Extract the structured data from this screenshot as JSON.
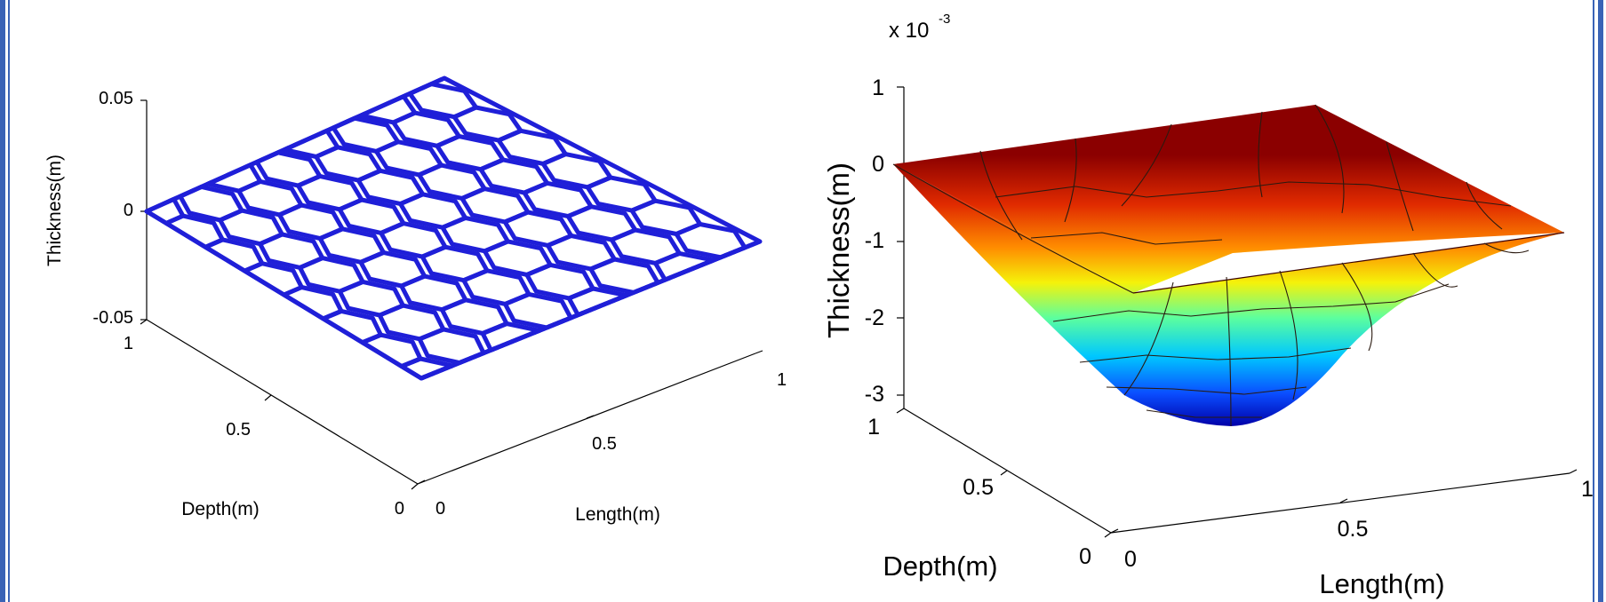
{
  "chart_data": [
    {
      "type": "surface",
      "style": "wireframe-mesh",
      "mesh": "hexagonal",
      "color": "#1f1fd8",
      "xlabel": "Length(m)",
      "ylabel": "Depth(m)",
      "zlabel": "Thickness(m)",
      "xlim": [
        0,
        1
      ],
      "ylim": [
        0,
        1
      ],
      "zlim": [
        -0.05,
        0.05
      ],
      "x_ticks": [
        "0",
        "0.5",
        "1"
      ],
      "y_ticks": [
        "0",
        "0.5",
        "1"
      ],
      "z_ticks": [
        "-0.05",
        "0",
        "0.05"
      ],
      "surface_z": 0
    },
    {
      "type": "surface",
      "style": "shaded-mesh",
      "mesh": "voronoi",
      "colormap": "jet",
      "xlabel": "Length(m)",
      "ylabel": "Depth(m)",
      "zlabel": "Thickness(m)",
      "z_multiplier": "x 10",
      "z_exponent": "-3",
      "xlim": [
        0,
        1
      ],
      "ylim": [
        0,
        1
      ],
      "zlim": [
        -3,
        1
      ],
      "x_ticks": [
        "0",
        "0.5",
        "1"
      ],
      "y_ticks": [
        "0",
        "0.5",
        "1"
      ],
      "z_ticks": [
        "-3",
        "-2",
        "-1",
        "0",
        "1"
      ],
      "surface_edge_z": 0,
      "surface_center_z": -2.9
    }
  ],
  "frame": {
    "color": "#3a63b6"
  }
}
